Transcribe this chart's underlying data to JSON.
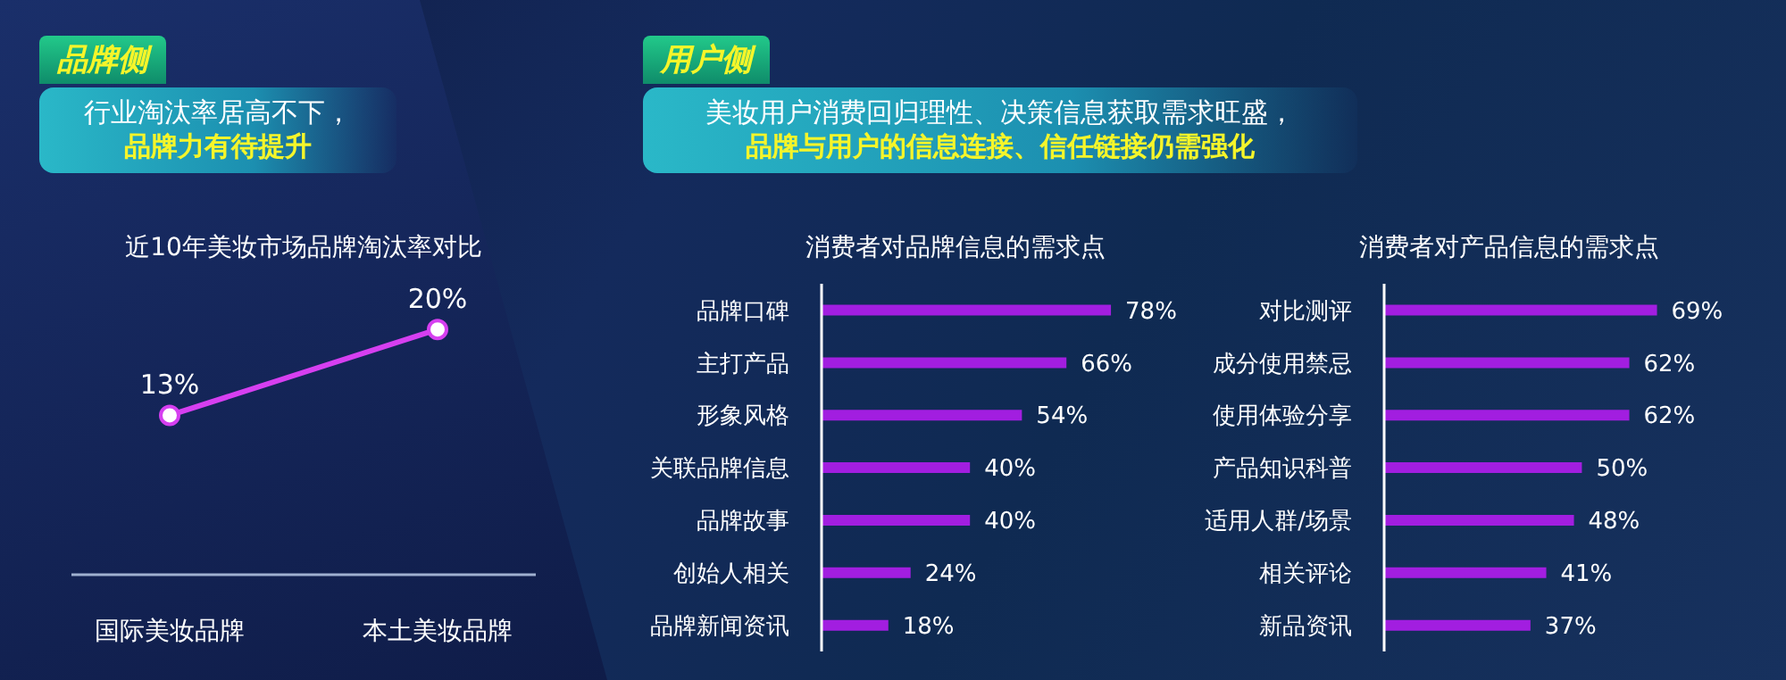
{
  "chart_data": [
    {
      "type": "line",
      "title": "近10年美妆市场品牌淘汰率对比",
      "annotations": [
        "品牌侧",
        "行业淘汰率居高不下，",
        "品牌力有待提升"
      ],
      "categories": [
        "国际美妆品牌",
        "本土美妆品牌"
      ],
      "values": [
        13,
        20
      ],
      "value_labels": [
        "13%",
        "20%"
      ],
      "color": "#d63ff0",
      "marker": "circle",
      "legend": false,
      "grid": false
    },
    {
      "type": "bar",
      "orientation": "horizontal",
      "title": "消费者对品牌信息的需求点",
      "annotations": [
        "用户侧",
        "美妆用户消费回归理性、决策信息获取需求旺盛，",
        "品牌与用户的信息连接、信任链接仍需强化"
      ],
      "categories": [
        "品牌口碑",
        "主打产品",
        "形象风格",
        "关联品牌信息",
        "品牌故事",
        "创始人相关",
        "品牌新闻资讯"
      ],
      "values": [
        78,
        66,
        54,
        40,
        40,
        24,
        18
      ],
      "value_labels": [
        "78%",
        "66%",
        "54%",
        "40%",
        "40%",
        "24%",
        "18%"
      ],
      "color": "#a21ee0",
      "legend": false,
      "grid": false
    },
    {
      "type": "bar",
      "orientation": "horizontal",
      "title": "消费者对产品信息的需求点",
      "categories": [
        "对比测评",
        "成分使用禁忌",
        "使用体验分享",
        "产品知识科普",
        "适用人群/场景",
        "相关评论",
        "新品资讯"
      ],
      "values": [
        69,
        62,
        62,
        50,
        48,
        41,
        37
      ],
      "value_labels": [
        "69%",
        "62%",
        "62%",
        "50%",
        "48%",
        "41%",
        "37%"
      ],
      "color": "#a21ee0",
      "legend": false,
      "grid": false
    }
  ]
}
